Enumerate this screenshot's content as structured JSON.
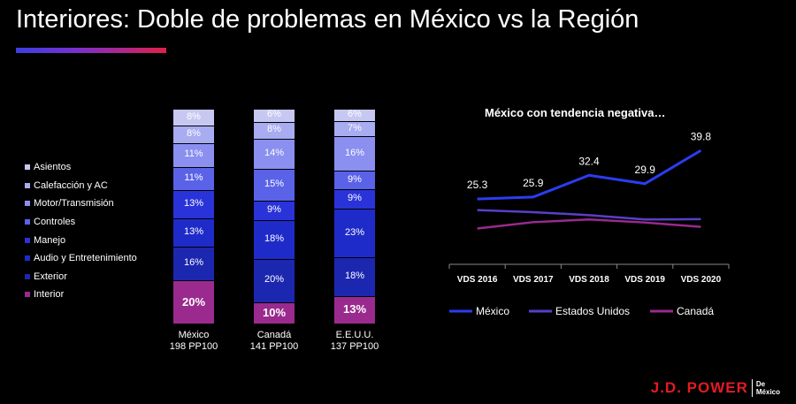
{
  "title": "Interiores: Doble de problemas en México vs la Región",
  "brand_colors": {
    "accent_bar_start": "#3b3fe0",
    "accent_bar_end": "#e0204a",
    "logo": "#e31b23"
  },
  "stacked_legend": [
    {
      "label": "Asientos",
      "color": "#c6c8f2"
    },
    {
      "label": "Calefacción y AC",
      "color": "#a8acf0"
    },
    {
      "label": "Motor/Transmisión",
      "color": "#8a8ff0"
    },
    {
      "label": "Controles",
      "color": "#5a62e8"
    },
    {
      "label": "Manejo",
      "color": "#2a33d8"
    },
    {
      "label": "Audio y Entretenimiento",
      "color": "#1f2bc8"
    },
    {
      "label": "Exterior",
      "color": "#1c27b0"
    },
    {
      "label": "Interior",
      "color": "#9a2a8e"
    }
  ],
  "line_title": "México con tendencia negativa…",
  "logo": {
    "brand": "J.D. POWER",
    "sub_line1": "De",
    "sub_line2": "México"
  },
  "chart_data": [
    {
      "type": "bar",
      "stacked": true,
      "categories": [
        "México\n198 PP100",
        "Canadá\n141 PP100",
        "E.E.U.U.\n137 PP100"
      ],
      "category_lines": [
        [
          "México",
          "198 PP100"
        ],
        [
          "Canadá",
          "141 PP100"
        ],
        [
          "E.E.U.U.",
          "137 PP100"
        ]
      ],
      "series": [
        {
          "name": "Interior",
          "values": [
            20,
            10,
            13
          ],
          "labels": [
            "20%",
            "10%",
            "13%"
          ]
        },
        {
          "name": "Exterior",
          "values": [
            16,
            20,
            18
          ],
          "labels": [
            "16%",
            "20%",
            "18%"
          ]
        },
        {
          "name": "Audio y Entretenimiento",
          "values": [
            13,
            18,
            23
          ],
          "labels": [
            "13%",
            "18%",
            "23%"
          ]
        },
        {
          "name": "Manejo",
          "values": [
            13,
            9,
            9
          ],
          "labels": [
            "13%",
            "9%",
            "9%"
          ]
        },
        {
          "name": "Controles",
          "values": [
            11,
            15,
            9
          ],
          "labels": [
            "11%",
            "15%",
            "9%"
          ]
        },
        {
          "name": "Motor/Transmisión",
          "values": [
            11,
            14,
            16
          ],
          "labels": [
            "11%",
            "14%",
            "16%"
          ]
        },
        {
          "name": "Calefacción y AC",
          "values": [
            8,
            8,
            7
          ],
          "labels": [
            "8%",
            "8%",
            "7%"
          ]
        },
        {
          "name": "Asientos",
          "values": [
            8,
            6,
            6
          ],
          "labels": [
            "8%",
            "6%",
            "6%"
          ]
        }
      ],
      "legend": "left"
    },
    {
      "type": "line",
      "title": "México con tendencia negativa…",
      "x": [
        "VDS 2016",
        "VDS 2017",
        "VDS 2018",
        "VDS 2019",
        "VDS 2020"
      ],
      "series": [
        {
          "name": "México",
          "color": "#2a3df0",
          "values": [
            25.3,
            25.9,
            32.4,
            29.9,
            39.8
          ],
          "labels": [
            "25.3",
            "25.9",
            "32.4",
            "29.9",
            "39.8"
          ]
        },
        {
          "name": "Estados Unidos",
          "color": "#5a3fc8",
          "values": [
            22.0,
            21.4,
            20.5,
            19.2,
            19.3
          ]
        },
        {
          "name": "Canadá",
          "color": "#9a2a8e",
          "values": [
            16.5,
            18.4,
            19.2,
            18.3,
            17.0
          ]
        }
      ],
      "ylim": [
        0,
        45
      ],
      "legend": "bottom"
    }
  ]
}
